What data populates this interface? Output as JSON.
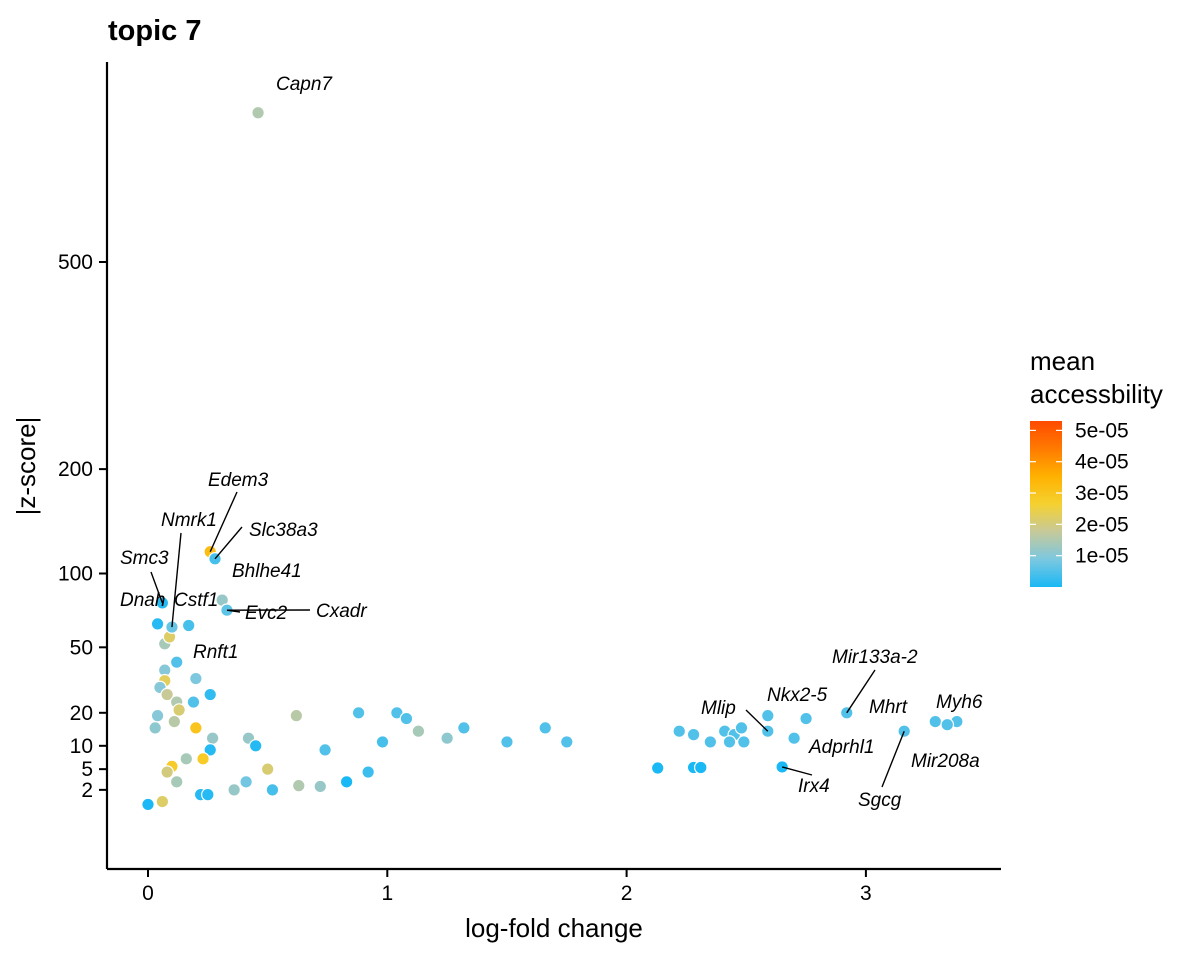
{
  "chart_data": {
    "type": "scatter",
    "title": "topic 7",
    "xlabel": "log-fold change",
    "ylabel": "|z-score|",
    "xlim": [
      -0.18,
      3.58
    ],
    "y_scale": "signed square root (sqrt of |z-score|)",
    "ylim": [
      0,
      900
    ],
    "x_ticks": [
      0,
      1,
      2,
      3
    ],
    "y_ticks": [
      2,
      5,
      10,
      20,
      50,
      100,
      200,
      500
    ],
    "grid": false,
    "legend": {
      "title_lines": [
        "mean",
        "accessbility"
      ],
      "position": "right",
      "type": "colorbar",
      "range": [
        0,
        5.3e-05
      ],
      "ticks": [
        {
          "label": "1e-05",
          "value": 1e-05
        },
        {
          "label": "2e-05",
          "value": 2e-05
        },
        {
          "label": "3e-05",
          "value": 3e-05
        },
        {
          "label": "4e-05",
          "value": 4e-05
        },
        {
          "label": "5e-05",
          "value": 5e-05
        }
      ],
      "colors": [
        "#1ab8f5",
        "#7cc8e0",
        "#c6c99a",
        "#f5d130",
        "#ffb100",
        "#ff7a00",
        "#ff4a00"
      ]
    },
    "point_style": {
      "stroke": "#ffffff",
      "note": "many thousands of peaks; points below are a representative sample"
    },
    "labeled_points": [
      {
        "label": "Capn7",
        "x": 0.46,
        "y": 800,
        "acc": 1.5e-05
      },
      {
        "label": "Edem3",
        "x": 0.26,
        "y": 118,
        "acc": 3.2e-05
      },
      {
        "label": "Slc38a3",
        "x": 0.28,
        "y": 112,
        "acc": 4e-06
      },
      {
        "label": "Nmrk1",
        "x": 0.1,
        "y": 62,
        "acc": 7e-06
      },
      {
        "label": "Smc3",
        "x": 0.06,
        "y": 78,
        "acc": 1e-06
      },
      {
        "label": "Dnah",
        "x": 0.04,
        "y": 64,
        "acc": 1e-06
      },
      {
        "label": "Cstf1",
        "x": 0.17,
        "y": 63,
        "acc": 4e-06
      },
      {
        "label": "Bhlhe41",
        "x": 0.31,
        "y": 80,
        "acc": 1.2e-05
      },
      {
        "label": "Evc2",
        "x": 0.33,
        "y": 73,
        "acc": 6e-06
      },
      {
        "label": "Cxadr",
        "x": 0.33,
        "y": 73,
        "acc": 6e-06
      },
      {
        "label": "Rnft1",
        "x": 0.12,
        "y": 42,
        "acc": 5e-06
      },
      {
        "label": "Mlip",
        "x": 2.59,
        "y": 14,
        "acc": 5e-06
      },
      {
        "label": "Nkx2-5",
        "x": 2.59,
        "y": 19,
        "acc": 5e-06
      },
      {
        "label": "Mir133a-2",
        "x": 2.92,
        "y": 20,
        "acc": 5e-06
      },
      {
        "label": "Mhrt",
        "x": 2.75,
        "y": 18,
        "acc": 5e-06
      },
      {
        "label": "Myh6",
        "x": 3.38,
        "y": 17,
        "acc": 5e-06
      },
      {
        "label": "Adprhl1",
        "x": 2.7,
        "y": 12,
        "acc": 5e-06
      },
      {
        "label": "Irx4",
        "x": 2.65,
        "y": 5.4,
        "acc": 0
      },
      {
        "label": "Sgcg",
        "x": 3.16,
        "y": 14,
        "acc": 5e-06
      },
      {
        "label": "Mir208a",
        "x": 3.34,
        "y": 16,
        "acc": 5e-06
      }
    ],
    "points": [
      {
        "x": 0.88,
        "y": 20,
        "acc": 5e-06
      },
      {
        "x": 0.62,
        "y": 19,
        "acc": 1.6e-05
      },
      {
        "x": 1.04,
        "y": 20,
        "acc": 5e-06
      },
      {
        "x": 1.08,
        "y": 18,
        "acc": 5e-06
      },
      {
        "x": 1.13,
        "y": 14,
        "acc": 1.4e-05
      },
      {
        "x": 0.98,
        "y": 11,
        "acc": 4e-06
      },
      {
        "x": 1.32,
        "y": 15,
        "acc": 5e-06
      },
      {
        "x": 1.25,
        "y": 12,
        "acc": 1.1e-05
      },
      {
        "x": 1.66,
        "y": 15,
        "acc": 5e-06
      },
      {
        "x": 1.5,
        "y": 11,
        "acc": 5e-06
      },
      {
        "x": 1.75,
        "y": 11,
        "acc": 5e-06
      },
      {
        "x": 2.22,
        "y": 14,
        "acc": 5e-06
      },
      {
        "x": 2.28,
        "y": 13,
        "acc": 5e-06
      },
      {
        "x": 2.41,
        "y": 14,
        "acc": 5e-06
      },
      {
        "x": 2.45,
        "y": 13,
        "acc": 5e-06
      },
      {
        "x": 2.48,
        "y": 15,
        "acc": 5e-06
      },
      {
        "x": 2.43,
        "y": 11,
        "acc": 5e-06
      },
      {
        "x": 2.49,
        "y": 11,
        "acc": 5e-06
      },
      {
        "x": 2.35,
        "y": 11,
        "acc": 5e-06
      },
      {
        "x": 3.29,
        "y": 17,
        "acc": 5e-06
      },
      {
        "x": 2.13,
        "y": 5.2,
        "acc": 0
      },
      {
        "x": 2.28,
        "y": 5.3,
        "acc": 0
      },
      {
        "x": 2.31,
        "y": 5.3,
        "acc": 0
      },
      {
        "x": 0.07,
        "y": 52,
        "acc": 1.4e-05
      },
      {
        "x": 0.09,
        "y": 56,
        "acc": 2.2e-05
      },
      {
        "x": 0.07,
        "y": 38,
        "acc": 1e-05
      },
      {
        "x": 0.2,
        "y": 34,
        "acc": 9e-06
      },
      {
        "x": 0.07,
        "y": 33,
        "acc": 2.3e-05
      },
      {
        "x": 0.05,
        "y": 30,
        "acc": 1e-05
      },
      {
        "x": 0.26,
        "y": 27,
        "acc": 2e-06
      },
      {
        "x": 0.08,
        "y": 27,
        "acc": 1.8e-05
      },
      {
        "x": 0.12,
        "y": 24,
        "acc": 1.5e-05
      },
      {
        "x": 0.19,
        "y": 24,
        "acc": 5e-06
      },
      {
        "x": 0.13,
        "y": 21,
        "acc": 2.1e-05
      },
      {
        "x": 0.04,
        "y": 19,
        "acc": 1e-05
      },
      {
        "x": 0.11,
        "y": 17,
        "acc": 1.6e-05
      },
      {
        "x": 0.2,
        "y": 15,
        "acc": 3e-05
      },
      {
        "x": 0.03,
        "y": 15,
        "acc": 1.1e-05
      },
      {
        "x": 0.42,
        "y": 12,
        "acc": 1.2e-05
      },
      {
        "x": 0.27,
        "y": 12,
        "acc": 1.2e-05
      },
      {
        "x": 0.45,
        "y": 10,
        "acc": 1e-06
      },
      {
        "x": 0.26,
        "y": 9,
        "acc": 1e-06
      },
      {
        "x": 0.74,
        "y": 9,
        "acc": 5e-06
      },
      {
        "x": 0.23,
        "y": 7,
        "acc": 2.8e-05
      },
      {
        "x": 0.16,
        "y": 7,
        "acc": 1.4e-05
      },
      {
        "x": 0.1,
        "y": 5.5,
        "acc": 2.8e-05
      },
      {
        "x": 0.5,
        "y": 5,
        "acc": 2.1e-05
      },
      {
        "x": 0.08,
        "y": 4.5,
        "acc": 2e-05
      },
      {
        "x": 0.22,
        "y": 1.5,
        "acc": 1e-06
      },
      {
        "x": 0.25,
        "y": 1.5,
        "acc": 1e-06
      },
      {
        "x": 0.0,
        "y": 0.7,
        "acc": 0
      },
      {
        "x": 0.06,
        "y": 0.9,
        "acc": 2.2e-05
      },
      {
        "x": 0.12,
        "y": 3,
        "acc": 1.4e-05
      },
      {
        "x": 0.36,
        "y": 2,
        "acc": 1.2e-05
      },
      {
        "x": 0.41,
        "y": 3,
        "acc": 8e-06
      },
      {
        "x": 0.52,
        "y": 2,
        "acc": 4e-06
      },
      {
        "x": 0.63,
        "y": 2.5,
        "acc": 1.5e-05
      },
      {
        "x": 0.72,
        "y": 2.4,
        "acc": 1.2e-05
      },
      {
        "x": 0.83,
        "y": 3,
        "acc": 0
      },
      {
        "x": 0.92,
        "y": 4.5,
        "acc": 3e-06
      }
    ]
  }
}
